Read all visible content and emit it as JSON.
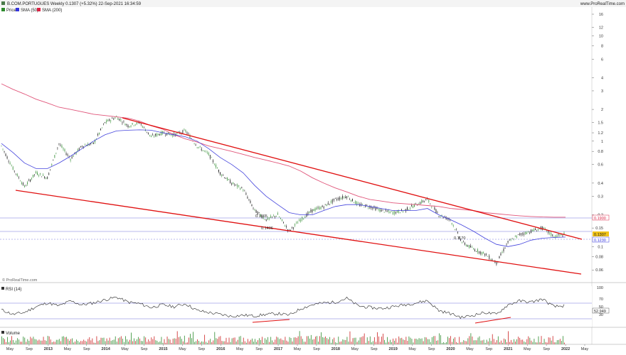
{
  "header": {
    "title": "B.COM.PORTUGUES Weekly 0.1307 (+5.32%) 22-Sep-2021 16:34:59",
    "website": "www.ProRealTime.com"
  },
  "legend": {
    "items": [
      {
        "label": "Price",
        "color": "#2e8b2e"
      },
      {
        "label": "SMA (50)",
        "color": "#3333dd"
      },
      {
        "label": "SMA (200)",
        "color": "#dd2244"
      }
    ]
  },
  "watermark": "© ProRealTime.com",
  "price_axis": {
    "ticks": [
      "16",
      "12",
      "10",
      "8",
      "6",
      "4",
      "3",
      "2",
      "1.5",
      "1.2",
      "1",
      "0.8",
      "0.6",
      "0.4",
      "0.3",
      "0.2",
      "0.15",
      "0.1",
      "0.08",
      "0.06"
    ],
    "last_price": "0.1307",
    "sma50_value": "0.1230",
    "sma200_value": "0.1900"
  },
  "annotations": [
    "0.1865",
    "0.1406",
    "0.1170"
  ],
  "time_axis": {
    "labels": [
      "May",
      "Sep",
      "2013",
      "May",
      "Sep",
      "2014",
      "May",
      "Sep",
      "2015",
      "May",
      "Sep",
      "2016",
      "May",
      "Sep",
      "2017",
      "May",
      "Sep",
      "2018",
      "May",
      "Sep",
      "2019",
      "May",
      "Sep",
      "2020",
      "May",
      "Sep",
      "2021",
      "May",
      "Sep",
      "2022",
      "May"
    ]
  },
  "rsi": {
    "label": "RSI (14)",
    "ticks": [
      "100",
      "70",
      "50",
      "30"
    ],
    "current": "52.949",
    "upper": "70",
    "lower": "30",
    "color": "#222222",
    "band_color": "#7777dd"
  },
  "volume": {
    "label": "Volume"
  },
  "chart_data": {
    "type": "line",
    "title": "B.COM.PORTUGUES Weekly 0.1307 (+5.32%) 22-Sep-2021 16:34:59",
    "scale": "log",
    "ylim": [
      0.05,
      16
    ],
    "x": [
      "2012-03",
      "2012-06",
      "2012-08",
      "2012-11",
      "2013-02",
      "2013-05",
      "2013-07",
      "2013-10",
      "2014-01",
      "2014-03",
      "2014-05",
      "2014-07",
      "2014-09",
      "2014-11",
      "2015-01",
      "2015-04",
      "2015-06",
      "2015-08",
      "2015-11",
      "2016-01",
      "2016-02",
      "2016-04",
      "2016-06",
      "2016-08",
      "2016-10",
      "2016-12",
      "2017-02",
      "2017-05",
      "2017-08",
      "2017-11",
      "2018-02",
      "2018-05",
      "2018-08",
      "2018-11",
      "2019-02",
      "2019-05",
      "2019-08",
      "2019-10",
      "2019-11",
      "2020-02",
      "2020-03",
      "2020-05",
      "2020-08",
      "2020-10",
      "2020-11",
      "2021-01",
      "2021-03",
      "2021-05",
      "2021-07",
      "2021-09"
    ],
    "series": [
      {
        "name": "Price",
        "values": [
          0.9,
          0.55,
          0.37,
          0.5,
          0.45,
          0.95,
          0.68,
          0.9,
          0.95,
          1.5,
          1.7,
          1.4,
          1.5,
          1.1,
          1.2,
          1.15,
          1.25,
          0.9,
          0.75,
          0.5,
          0.4,
          0.35,
          0.22,
          0.18,
          0.2,
          0.14,
          0.18,
          0.22,
          0.24,
          0.28,
          0.3,
          0.25,
          0.24,
          0.22,
          0.21,
          0.22,
          0.25,
          0.28,
          0.2,
          0.18,
          0.11,
          0.095,
          0.085,
          0.07,
          0.11,
          0.13,
          0.14,
          0.15,
          0.125,
          0.1307
        ]
      },
      {
        "name": "SMA (50)",
        "values": [
          0.95,
          0.78,
          0.62,
          0.55,
          0.55,
          0.62,
          0.72,
          0.85,
          1.0,
          1.15,
          1.25,
          1.27,
          1.28,
          1.27,
          1.2,
          1.15,
          1.1,
          1.0,
          0.85,
          0.7,
          0.6,
          0.5,
          0.38,
          0.3,
          0.25,
          0.21,
          0.2,
          0.2,
          0.22,
          0.24,
          0.25,
          0.25,
          0.24,
          0.23,
          0.22,
          0.22,
          0.22,
          0.23,
          0.2,
          0.18,
          0.16,
          0.14,
          0.12,
          0.105,
          0.1,
          0.105,
          0.115,
          0.12,
          0.122,
          0.123
        ]
      },
      {
        "name": "SMA (200)",
        "values": [
          3.5,
          3.1,
          2.8,
          2.5,
          2.3,
          2.1,
          2.0,
          1.9,
          1.8,
          1.75,
          1.7,
          1.65,
          1.55,
          1.4,
          1.3,
          1.15,
          1.05,
          0.98,
          0.9,
          0.85,
          0.8,
          0.75,
          0.7,
          0.66,
          0.62,
          0.58,
          0.52,
          0.45,
          0.4,
          0.36,
          0.33,
          0.3,
          0.28,
          0.27,
          0.26,
          0.255,
          0.25,
          0.245,
          0.24,
          0.23,
          0.225,
          0.22,
          0.21,
          0.205,
          0.2,
          0.196,
          0.193,
          0.191,
          0.19,
          0.19
        ]
      }
    ],
    "rsi_values": [
      42,
      30,
      35,
      50,
      60,
      52,
      65,
      55,
      60,
      68,
      75,
      62,
      58,
      48,
      55,
      50,
      58,
      40,
      35,
      30,
      25,
      28,
      26,
      30,
      32,
      28,
      45,
      55,
      60,
      62,
      72,
      52,
      48,
      45,
      50,
      55,
      60,
      66,
      40,
      32,
      22,
      28,
      35,
      30,
      55,
      65,
      62,
      70,
      50,
      53
    ]
  }
}
